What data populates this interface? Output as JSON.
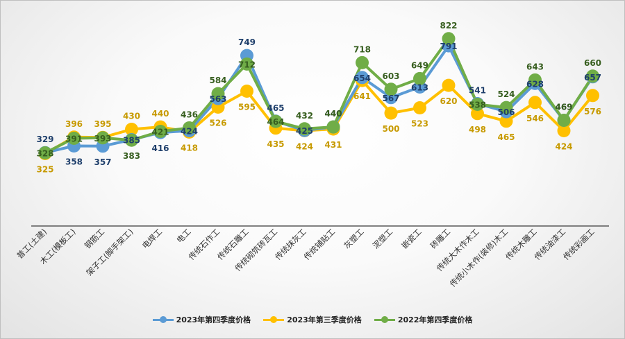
{
  "chart_data": {
    "type": "line",
    "categories": [
      "普工(土建)",
      "木工(模板工)",
      "钢筋工",
      "架子工(脚手架工)",
      "电焊工",
      "电工",
      "传统石作工",
      "传统石雕工",
      "传统砌筑砖瓦工",
      "传统抹灰工",
      "传统铺贴工",
      "灰塑工",
      "泥塑工",
      "嵌瓷工",
      "砖雕工",
      "传统大木作木工",
      "传统小木作(装修)木工",
      "传统木雕工",
      "传统油漆工",
      "传统彩画工"
    ],
    "series": [
      {
        "name": "2023年第四季度价格",
        "color": "#5b9bd5",
        "label_color": "#1f3f6b",
        "values": [
          329,
          358,
          357,
          385,
          416,
          424,
          563,
          749,
          465,
          425,
          440,
          654,
          567,
          613,
          791,
          541,
          506,
          628,
          469,
          657
        ]
      },
      {
        "name": "2023年第三季度价格",
        "color": "#ffc000",
        "label_color": "#c79a00",
        "values": [
          325,
          396,
          395,
          430,
          440,
          418,
          526,
          595,
          435,
          424,
          431,
          641,
          500,
          523,
          620,
          498,
          465,
          546,
          424,
          576
        ]
      },
      {
        "name": "2022年第四季度价格",
        "color": "#70ad47",
        "label_color": "#375e1f",
        "values": [
          328,
          391,
          393,
          383,
          421,
          436,
          584,
          712,
          464,
          432,
          440,
          718,
          603,
          649,
          822,
          538,
          524,
          643,
          469,
          660
        ]
      }
    ],
    "title": "",
    "xlabel": "",
    "ylabel": "",
    "grid": false,
    "legend": "bottom"
  }
}
